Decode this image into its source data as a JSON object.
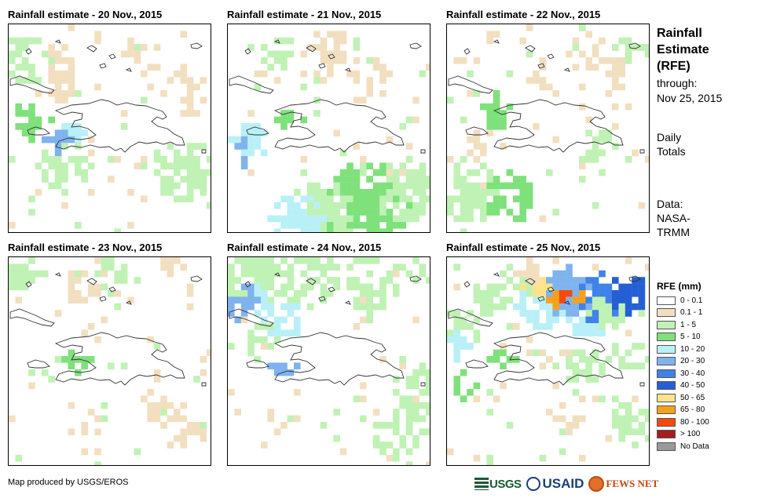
{
  "panels": [
    {
      "title": "Rainfall estimate - 20 Nov., 2015"
    },
    {
      "title": "Rainfall estimate - 21 Nov., 2015"
    },
    {
      "title": "Rainfall estimate - 22 Nov., 2015"
    },
    {
      "title": "Rainfall estimate - 23 Nov., 2015"
    },
    {
      "title": "Rainfall estimate - 24 Nov., 2015"
    },
    {
      "title": "Rainfall estimate - 25 Nov., 2015"
    }
  ],
  "sidebar": {
    "title": [
      "Rainfall",
      "Estimate",
      "(RFE)"
    ],
    "through_label": "through:",
    "through_date": "Nov 25, 2015",
    "daily": [
      "Daily",
      "Totals"
    ],
    "data_source": [
      "Data:",
      "NASA-",
      "TRMM"
    ]
  },
  "legend": {
    "title": "RFE (mm)",
    "items": [
      {
        "label": "0 - 0.1",
        "color": "#ffffff"
      },
      {
        "label": "0.1 - 1",
        "color": "#f2dfc0"
      },
      {
        "label": "1 - 5",
        "color": "#bff2b4"
      },
      {
        "label": "5 - 10",
        "color": "#7ee17b"
      },
      {
        "label": "10 - 20",
        "color": "#b9f0f7"
      },
      {
        "label": "20 - 30",
        "color": "#7fb3ee"
      },
      {
        "label": "30 - 40",
        "color": "#3f82e8"
      },
      {
        "label": "40 - 50",
        "color": "#2460d4"
      },
      {
        "label": "50 - 65",
        "color": "#fde38a"
      },
      {
        "label": "65 - 80",
        "color": "#f7a11a"
      },
      {
        "label": "80 - 100",
        "color": "#f44a0e"
      },
      {
        "label": "> 100",
        "color": "#a51d1d"
      },
      {
        "label": "No Data",
        "color": "#9a9a9a"
      }
    ]
  },
  "footer": {
    "credit": "Map produced by USGS/EROS",
    "logos": [
      "USGS",
      "USAID",
      "FEWS NET"
    ]
  }
}
